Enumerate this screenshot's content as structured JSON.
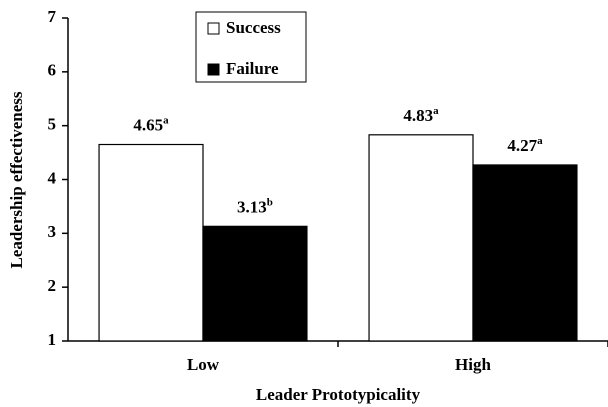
{
  "chart_data": {
    "type": "bar",
    "categories": [
      "Low",
      "High"
    ],
    "series": [
      {
        "name": "Success",
        "color": "#ffffff",
        "values": [
          4.65,
          4.83
        ],
        "superscripts": [
          "a",
          "a"
        ]
      },
      {
        "name": "Failure",
        "color": "#000000",
        "values": [
          3.13,
          4.27
        ],
        "superscripts": [
          "b",
          "a"
        ]
      }
    ],
    "ylim": [
      1,
      7
    ],
    "yticks": [
      1,
      2,
      3,
      4,
      5,
      6,
      7
    ],
    "xlabel": "Leader Prototypicality",
    "ylabel": "Leadership effectiveness",
    "grid": false,
    "legend": "top"
  }
}
